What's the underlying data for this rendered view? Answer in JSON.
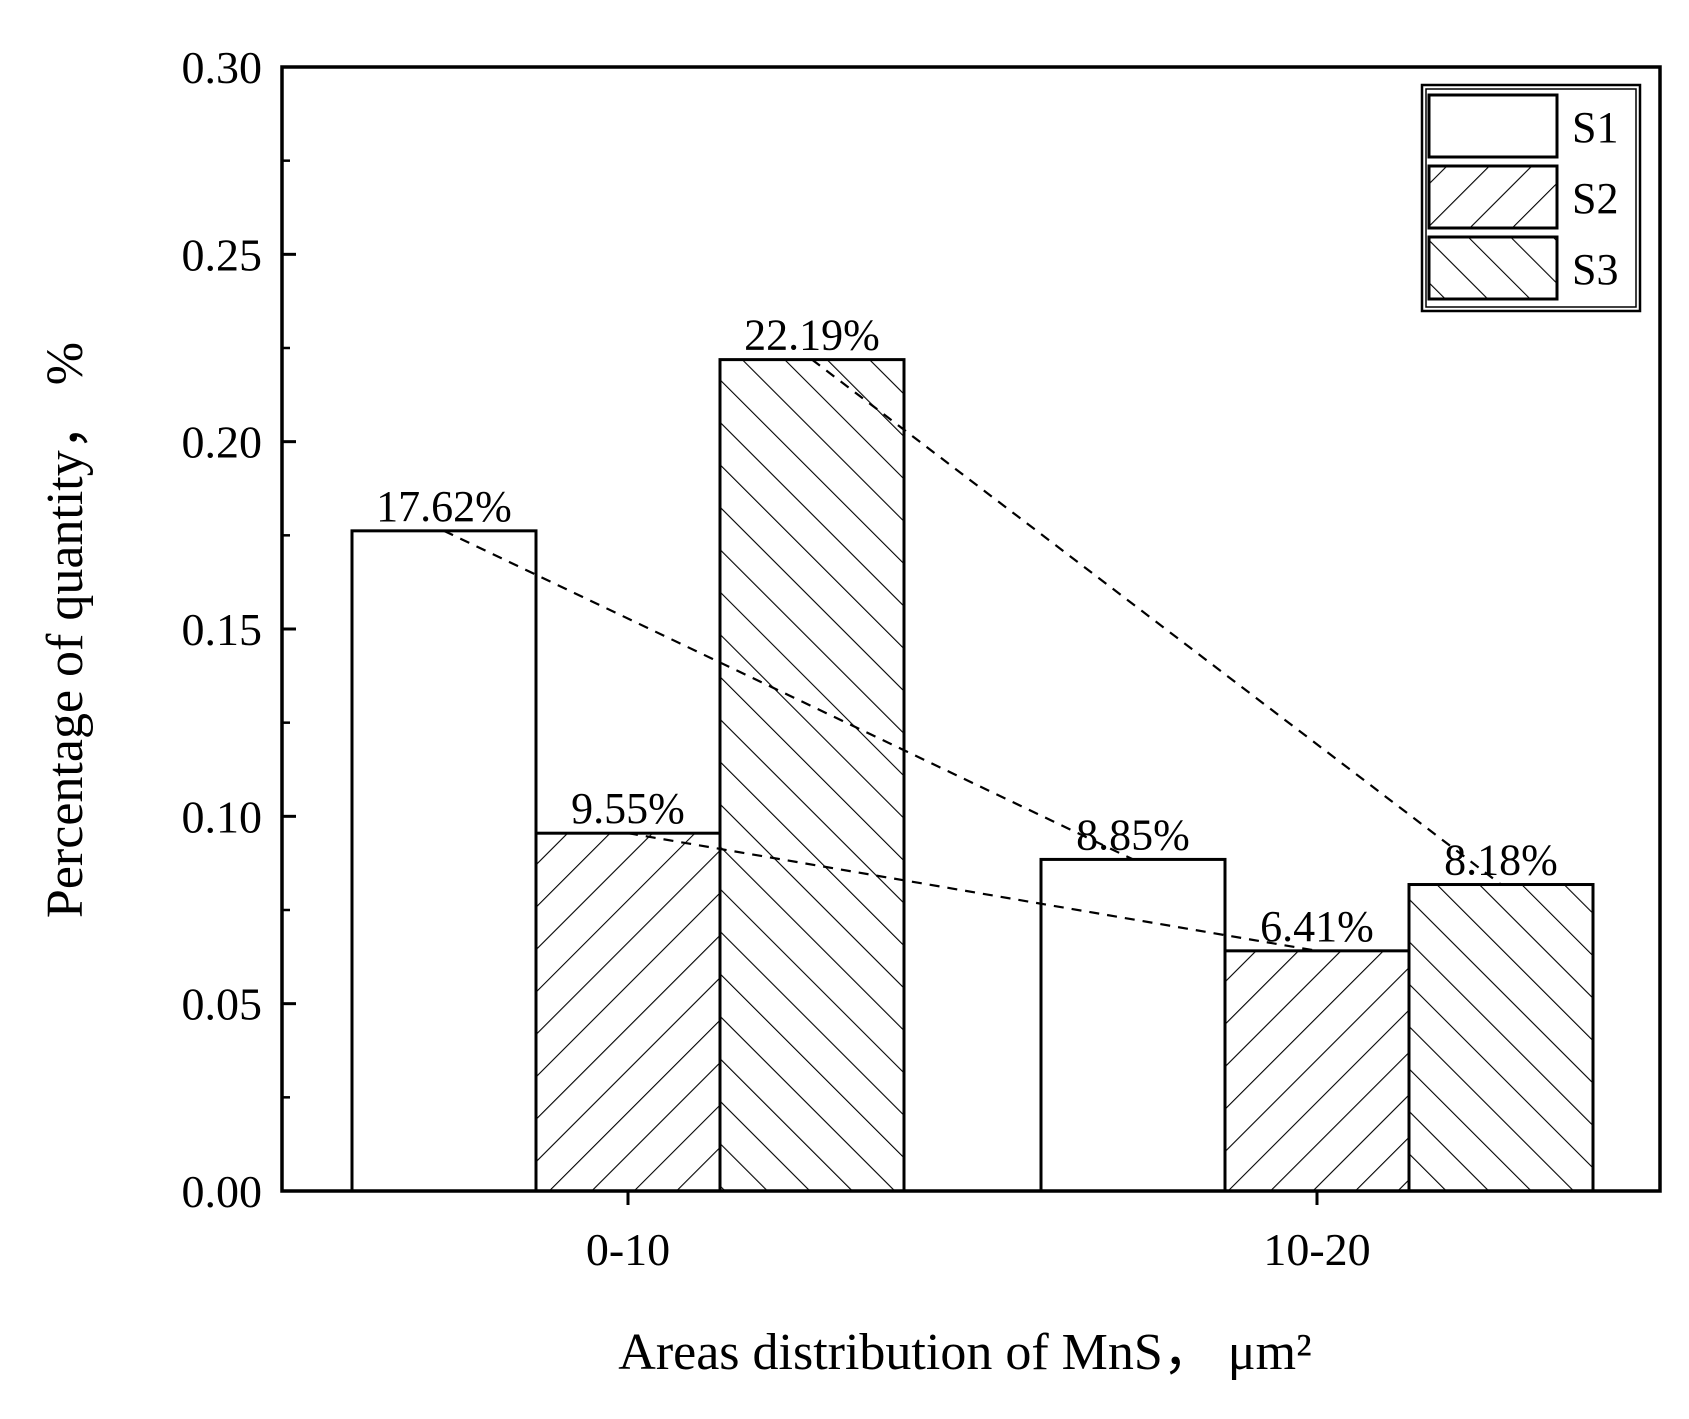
{
  "chart_data": {
    "type": "bar",
    "categories": [
      "0-10",
      "10-20"
    ],
    "series": [
      {
        "name": "S1",
        "values": [
          0.1762,
          0.0885
        ],
        "labels": [
          "17.62%",
          "8.85%"
        ],
        "pattern": "none"
      },
      {
        "name": "S2",
        "values": [
          0.0955,
          0.0641
        ],
        "labels": [
          "9.55%",
          "6.41%"
        ],
        "pattern": "forward-hatch"
      },
      {
        "name": "S3",
        "values": [
          0.2219,
          0.0818
        ],
        "labels": [
          "22.19%",
          "8.18%"
        ],
        "pattern": "back-hatch"
      }
    ],
    "xlabel": "Areas distribution of MnS， μm²",
    "ylabel": "Percentage of quantity， %",
    "ylim": [
      0,
      0.3
    ],
    "yticks": [
      "0.00",
      "0.05",
      "0.10",
      "0.15",
      "0.20",
      "0.25",
      "0.30"
    ],
    "grid": false,
    "legend_position": "top-right",
    "trend_lines": "dashed lines connecting same-series bars across categories",
    "colors": {
      "bar_fill": "#ffffff",
      "stroke": "#000000"
    }
  }
}
